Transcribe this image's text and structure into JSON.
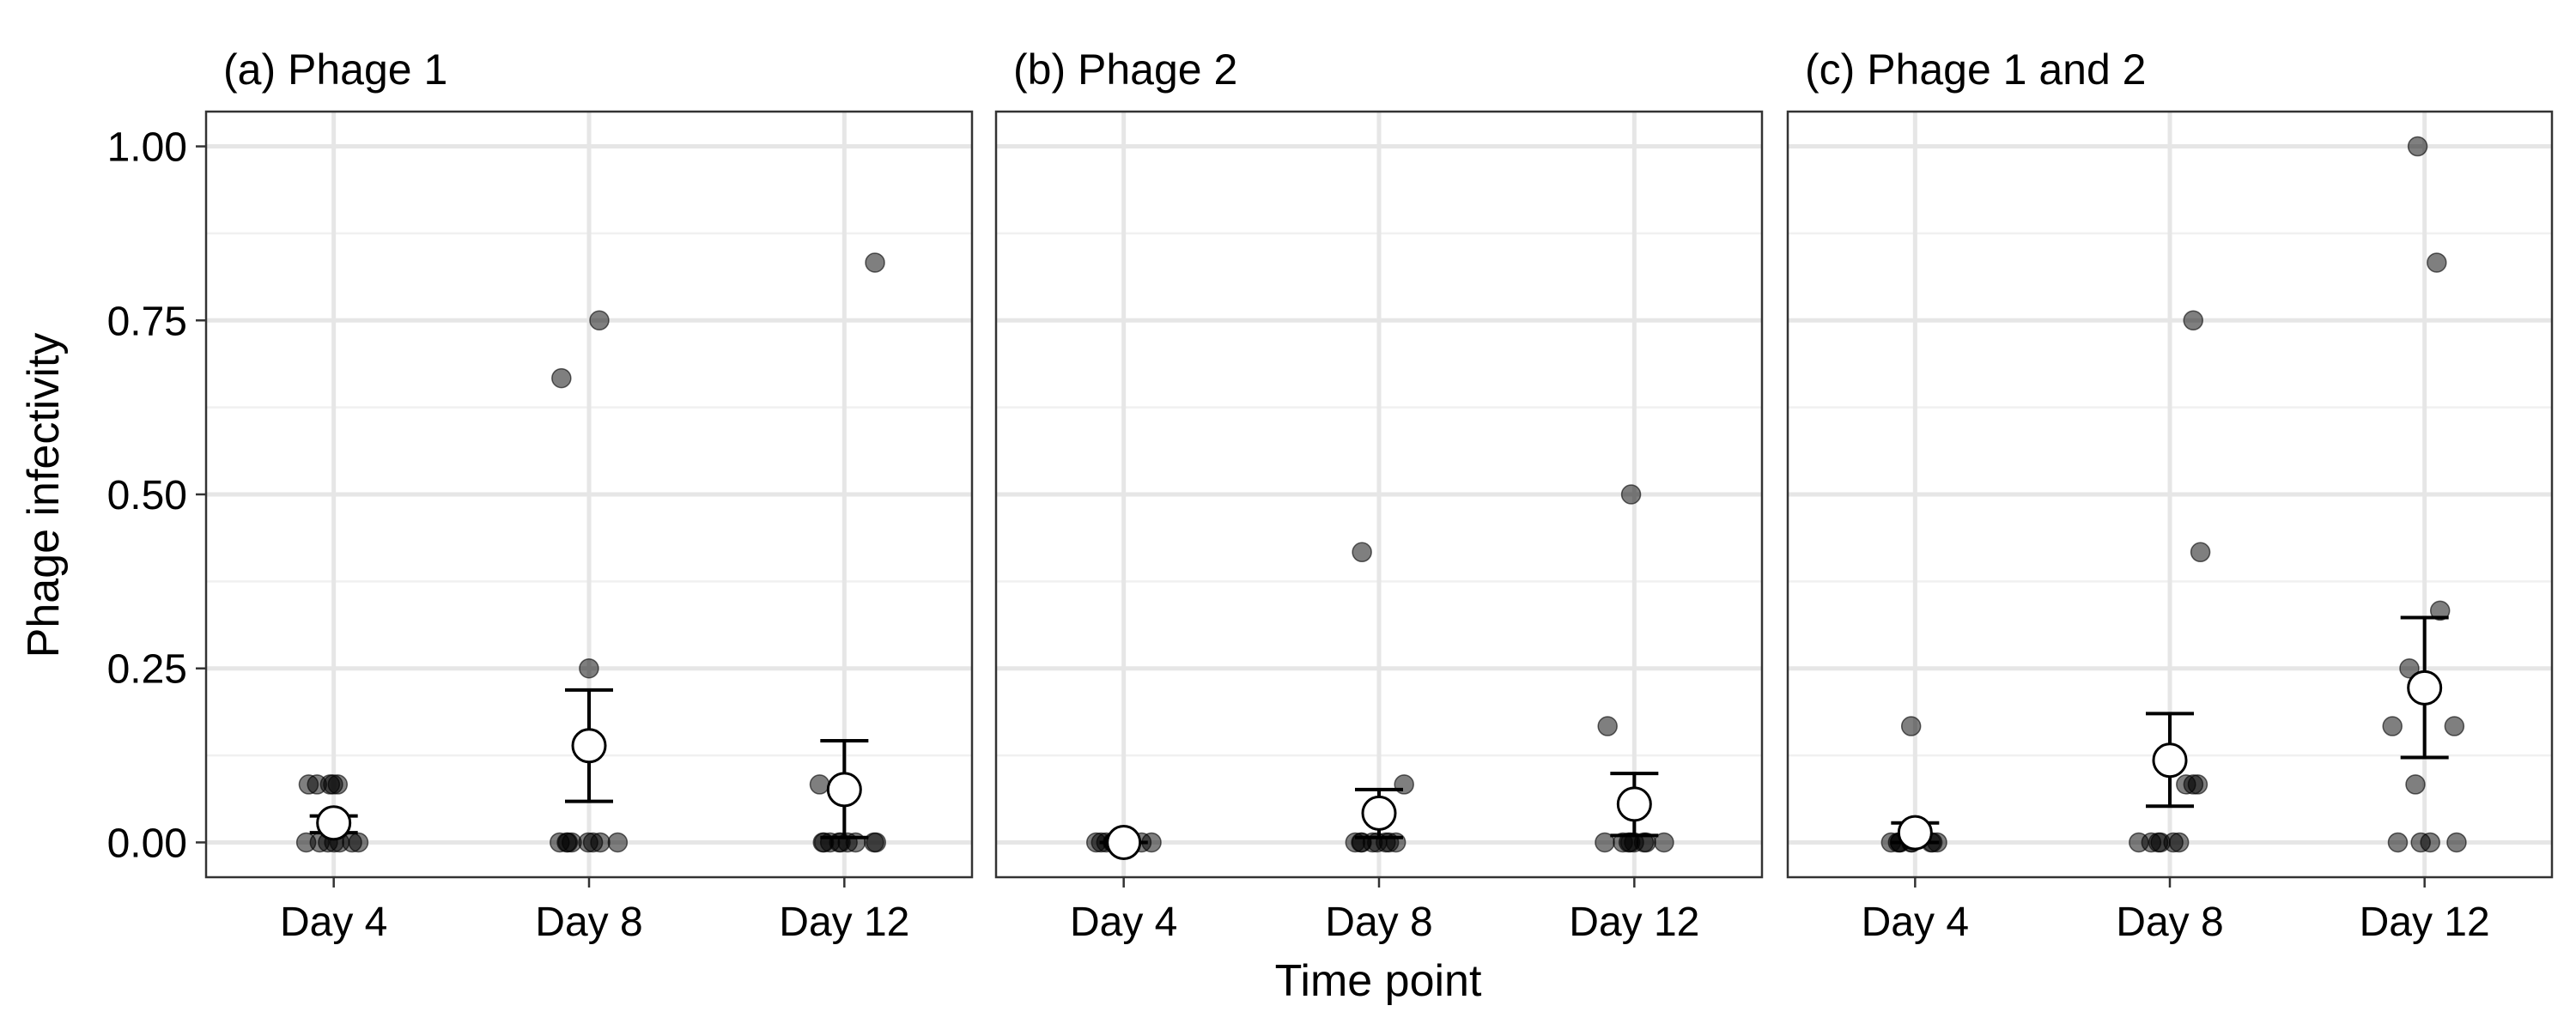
{
  "chart_data": {
    "type": "scatter",
    "xlabel": "Time point",
    "ylabel": "Phage infectivity",
    "ylim": [
      -0.05,
      1.05
    ],
    "yticks": [
      0,
      0.25,
      0.5,
      0.75,
      1.0
    ],
    "ytick_labels": [
      "0.00",
      "0.25",
      "0.50",
      "0.75",
      "1.00"
    ],
    "categories": [
      "Day 4",
      "Day 8",
      "Day 12"
    ],
    "grid": true,
    "panels": [
      {
        "title": "(a) Phage 1",
        "groups": [
          {
            "category": "Day 4",
            "points": [
              0.0833,
              0.0833,
              0.0833,
              0.0833,
              0.0833,
              0,
              0,
              0,
              0,
              0,
              0,
              0
            ],
            "mean": 0.028,
            "lower": 0.014,
            "upper": 0.038
          },
          {
            "category": "Day 8",
            "points": [
              0.75,
              0.667,
              0.25,
              0,
              0,
              0,
              0,
              0,
              0,
              0,
              0
            ],
            "mean": 0.139,
            "lower": 0.059,
            "upper": 0.219
          },
          {
            "category": "Day 12",
            "points": [
              0.833,
              0.0833,
              0,
              0,
              0,
              0,
              0,
              0,
              0,
              0,
              0
            ],
            "mean": 0.076,
            "lower": 0.007,
            "upper": 0.146
          }
        ]
      },
      {
        "title": "(b) Phage 2",
        "groups": [
          {
            "category": "Day 4",
            "points": [
              0,
              0,
              0,
              0,
              0,
              0,
              0,
              0,
              0,
              0
            ],
            "mean": 0.0,
            "lower": 0.0,
            "upper": 0.0
          },
          {
            "category": "Day 8",
            "points": [
              0.417,
              0.0833,
              0,
              0,
              0,
              0,
              0,
              0,
              0,
              0
            ],
            "mean": 0.042,
            "lower": 0.007,
            "upper": 0.076
          },
          {
            "category": "Day 12",
            "points": [
              0.5,
              0.167,
              0,
              0,
              0,
              0,
              0,
              0,
              0,
              0
            ],
            "mean": 0.055,
            "lower": 0.01,
            "upper": 0.099
          }
        ]
      },
      {
        "title": "(c) Phage 1 and 2",
        "groups": [
          {
            "category": "Day 4",
            "points": [
              0.167,
              0,
              0,
              0,
              0,
              0,
              0,
              0,
              0,
              0
            ],
            "mean": 0.014,
            "lower": 0.0,
            "upper": 0.028
          },
          {
            "category": "Day 8",
            "points": [
              0.75,
              0.417,
              0.0833,
              0.0833,
              0.0833,
              0,
              0,
              0,
              0,
              0,
              0
            ],
            "mean": 0.118,
            "lower": 0.052,
            "upper": 0.185
          },
          {
            "category": "Day 12",
            "points": [
              1.0,
              0.833,
              0.333,
              0.25,
              0.167,
              0.167,
              0.0833,
              0,
              0,
              0,
              0
            ],
            "mean": 0.222,
            "lower": 0.122,
            "upper": 0.323
          }
        ]
      }
    ]
  }
}
